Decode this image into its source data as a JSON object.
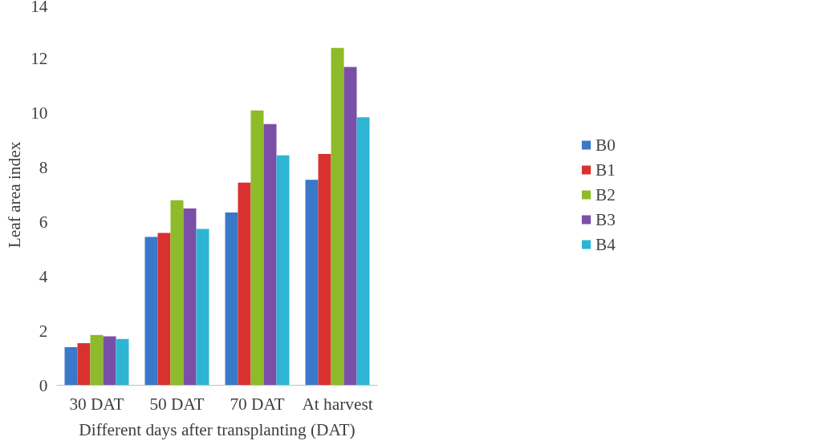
{
  "chart_data": {
    "type": "bar",
    "xlabel": "Different days after transplanting (DAT)",
    "ylabel": "Leaf area index",
    "categories": [
      "30 DAT",
      "50 DAT",
      "70 DAT",
      "At harvest"
    ],
    "series": [
      {
        "name": "B0",
        "color": "#3a78c9",
        "values": [
          1.4,
          5.45,
          6.35,
          7.55
        ]
      },
      {
        "name": "B1",
        "color": "#d9322e",
        "values": [
          1.55,
          5.6,
          7.45,
          8.5
        ]
      },
      {
        "name": "B2",
        "color": "#8dbb2a",
        "values": [
          1.85,
          6.8,
          10.1,
          12.4
        ]
      },
      {
        "name": "B3",
        "color": "#7a4fa8",
        "values": [
          1.8,
          6.5,
          9.6,
          11.7
        ]
      },
      {
        "name": "B4",
        "color": "#2eb5d4",
        "values": [
          1.7,
          5.75,
          8.45,
          9.85
        ]
      }
    ],
    "ylim": [
      0,
      14
    ],
    "yticks": [
      0,
      2,
      4,
      6,
      8,
      10,
      12,
      14
    ],
    "grid": false,
    "legend": "right"
  }
}
